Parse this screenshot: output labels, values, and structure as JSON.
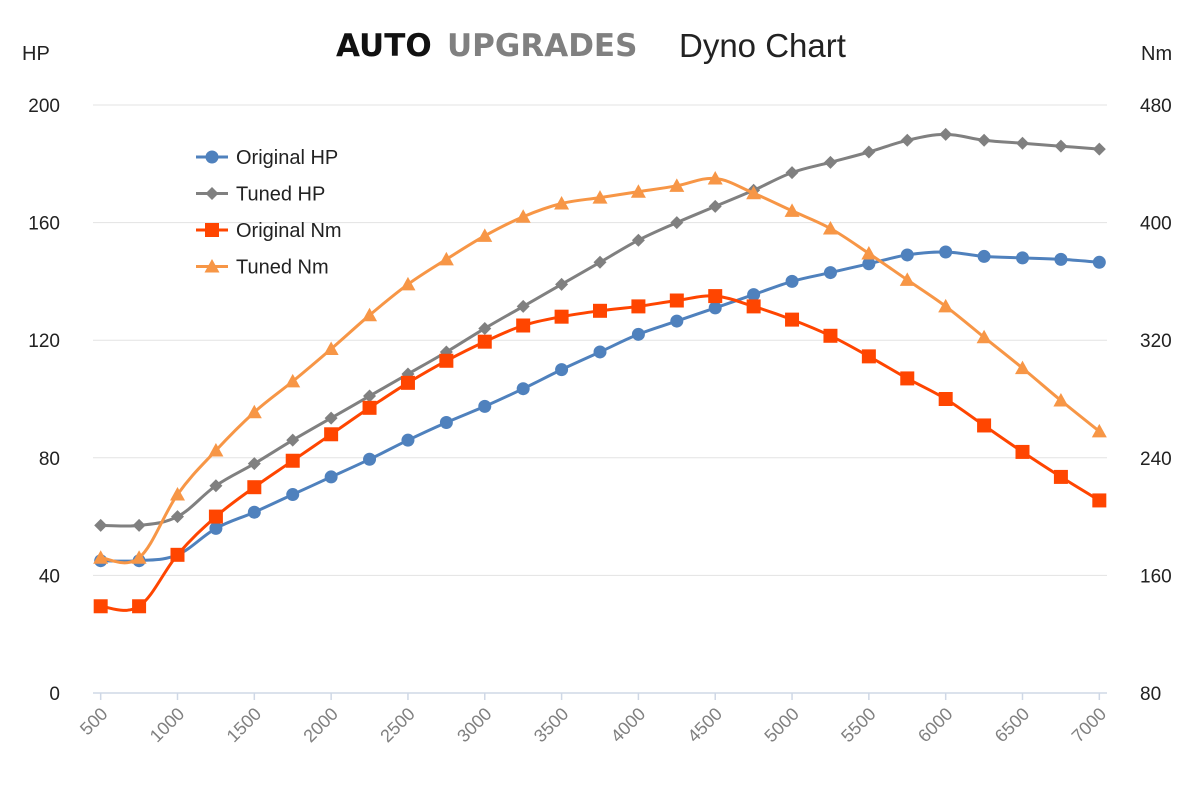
{
  "header": {
    "brand_auto": "AUTO",
    "brand_upgrades": "UPGRADES",
    "title": "Dyno Chart"
  },
  "chart_data": {
    "type": "line",
    "title": "Dyno Chart",
    "xlabel": "",
    "ylabel_left": "HP",
    "ylabel_right": "Nm",
    "x": [
      500,
      750,
      1000,
      1250,
      1500,
      1750,
      2000,
      2250,
      2500,
      2750,
      3000,
      3250,
      3500,
      3750,
      4000,
      4250,
      4500,
      4750,
      5000,
      5250,
      5500,
      5750,
      6000,
      6250,
      6500,
      6750,
      7000
    ],
    "x_ticks": [
      500,
      1000,
      1500,
      2000,
      2500,
      3000,
      3500,
      4000,
      4500,
      5000,
      5500,
      6000,
      6500,
      7000
    ],
    "x_tick_labels": [
      "500",
      "1000",
      "1500",
      "2000",
      "2500",
      "3000",
      "3500",
      "4000",
      "4500",
      "5000",
      "5500",
      "6000",
      "6500",
      "7000"
    ],
    "xlim": [
      450,
      7050
    ],
    "ylim_left": [
      0,
      200
    ],
    "y_ticks_left": [
      0,
      40,
      80,
      120,
      160,
      200
    ],
    "y_tick_labels_left": [
      "0",
      "40",
      "80",
      "120",
      "160",
      "200"
    ],
    "ylim_right": [
      80,
      480
    ],
    "y_ticks_right": [
      80,
      160,
      240,
      320,
      400,
      480
    ],
    "y_tick_labels_right": [
      "80",
      "160",
      "240",
      "320",
      "400",
      "480"
    ],
    "grid": "horizontal",
    "legend_position": "top-left",
    "series": [
      {
        "name": "Original HP",
        "axis": "left",
        "color": "#4f81bd",
        "marker": "circle",
        "values": [
          45,
          45,
          47,
          56,
          61.5,
          67.5,
          73.5,
          79.5,
          86,
          92,
          97.5,
          103.5,
          110,
          116,
          122,
          126.5,
          131,
          135.5,
          140,
          143,
          146,
          149,
          150,
          148.5,
          148,
          147.5,
          146.5
        ]
      },
      {
        "name": "Tuned HP",
        "axis": "left",
        "color": "#808080",
        "marker": "diamond",
        "values": [
          57,
          57,
          60,
          70.5,
          78,
          86,
          93.5,
          101,
          108.5,
          116,
          124,
          131.5,
          139,
          146.5,
          154,
          160,
          165.5,
          171,
          177,
          180.5,
          184,
          188,
          190,
          188,
          187,
          186,
          185
        ]
      },
      {
        "name": "Original Nm",
        "axis": "right",
        "color": "#ff4500",
        "marker": "square",
        "values": [
          139,
          139,
          174,
          200,
          220,
          238,
          256,
          274,
          291,
          306,
          319,
          330,
          336,
          340,
          343,
          347,
          350,
          343,
          334,
          323,
          309,
          294,
          280,
          262,
          244,
          227,
          211
        ]
      },
      {
        "name": "Tuned Nm",
        "axis": "right",
        "color": "#f79646",
        "marker": "triangle",
        "values": [
          172,
          172,
          215,
          245,
          271,
          292,
          314,
          337,
          358,
          375,
          391,
          404,
          413,
          417,
          421,
          425,
          430,
          420,
          408,
          396,
          379,
          361,
          343,
          322,
          301,
          279,
          258
        ]
      }
    ]
  }
}
